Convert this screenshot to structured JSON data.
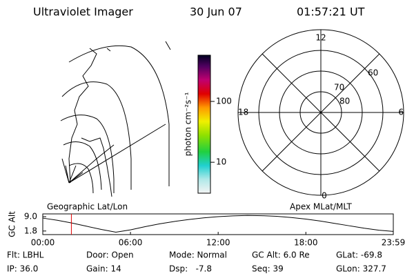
{
  "header": {
    "instrument": "Ultraviolet Imager",
    "date": "30 Jun 07",
    "time": "01:57:21 UT"
  },
  "colorbar": {
    "label": "photon cm⁻²s⁻¹",
    "log_scale": true,
    "ylim": [
      3.1,
      575
    ],
    "yticks": [
      10,
      100
    ]
  },
  "polar": {
    "labels": [
      "12",
      "0",
      "18",
      "6",
      "80",
      "70",
      "60"
    ]
  },
  "chart_data": {
    "type": "line",
    "ylabel": "GC Alt",
    "left_label": "Geographic Lat/Lon",
    "right_label": "Apex MLat/MLT",
    "x": [
      0,
      1,
      2,
      3,
      4,
      5,
      6,
      7,
      8,
      9,
      10,
      11,
      12,
      13,
      14,
      15,
      16,
      17,
      18,
      19,
      20,
      21,
      22,
      23,
      23.983
    ],
    "series": [
      {
        "color": "#000000",
        "values": [
          8.3,
          7.2,
          5.8,
          4.2,
          2.6,
          1.2,
          2.4,
          4.0,
          5.4,
          6.6,
          7.6,
          8.4,
          9.0,
          9.4,
          9.6,
          9.5,
          9.2,
          8.6,
          7.8,
          6.8,
          5.6,
          4.4,
          3.2,
          2.2,
          1.6
        ]
      }
    ],
    "marker": {
      "x": 1.956,
      "color": "#e00000"
    },
    "xlim": [
      0,
      23.983
    ],
    "xticks": [
      {
        "value": 0,
        "label": "00:00"
      },
      {
        "value": 6,
        "label": "06:00"
      },
      {
        "value": 12,
        "label": "12:00"
      },
      {
        "value": 18,
        "label": "18:00"
      },
      {
        "value": 23.983,
        "label": "23:59"
      }
    ],
    "ylim": [
      0,
      10.4
    ],
    "yticks": [
      {
        "value": 9,
        "label": "9.0"
      },
      {
        "value": 1.8,
        "label": "1.8"
      }
    ]
  },
  "footer": {
    "rows": [
      [
        "Flt: LBHL",
        "Door: Open",
        "Mode: Normal",
        "GC Alt: 6.0 Re",
        "GLat: -69.8"
      ],
      [
        "IP: 36.0",
        "Gain: 14",
        "Dsp:   -7.8",
        "Seq: 39",
        "GLon: 327.7"
      ]
    ]
  }
}
